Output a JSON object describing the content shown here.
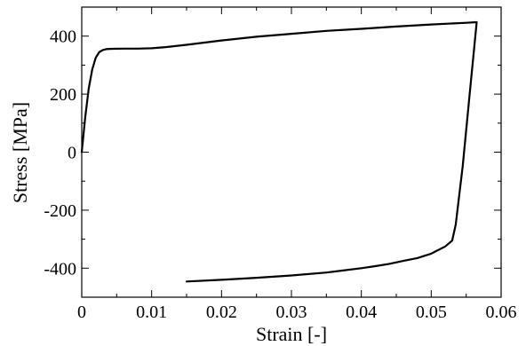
{
  "chart_data": {
    "type": "line",
    "title": "",
    "xlabel": "Strain [-]",
    "ylabel": "Stress [MPa]",
    "xlim": [
      0,
      0.06
    ],
    "ylim": [
      -500,
      500
    ],
    "xticks": [
      0,
      0.01,
      0.02,
      0.03,
      0.04,
      0.05,
      0.06
    ],
    "xtick_labels": [
      "0",
      "0.01",
      "0.02",
      "0.03",
      "0.04",
      "0.05",
      "0.06"
    ],
    "yticks": [
      -400,
      -200,
      0,
      200,
      400
    ],
    "ytick_labels": [
      "-400",
      "-200",
      "0",
      "200",
      "400"
    ],
    "grid": false,
    "legend": "none",
    "line_color": "#000000",
    "series": [
      {
        "x": [
          0,
          0.0005,
          0.001,
          0.0015,
          0.002,
          0.0025,
          0.003,
          0.0035,
          0.004,
          0.006,
          0.008,
          0.01,
          0.012,
          0.015,
          0.02,
          0.025,
          0.03,
          0.035,
          0.04,
          0.045,
          0.05,
          0.055,
          0.0565,
          0.0555,
          0.0545,
          0.0535,
          0.053,
          0.052,
          0.05,
          0.048,
          0.046,
          0.044,
          0.042,
          0.04,
          0.035,
          0.03,
          0.025,
          0.02,
          0.015
        ],
        "y": [
          0,
          120,
          220,
          285,
          325,
          345,
          352,
          355,
          356,
          357,
          357,
          358,
          362,
          370,
          385,
          398,
          408,
          418,
          425,
          433,
          440,
          446,
          448,
          200,
          -50,
          -250,
          -305,
          -325,
          -350,
          -365,
          -375,
          -385,
          -393,
          -400,
          -415,
          -425,
          -433,
          -440,
          -446
        ]
      }
    ]
  }
}
